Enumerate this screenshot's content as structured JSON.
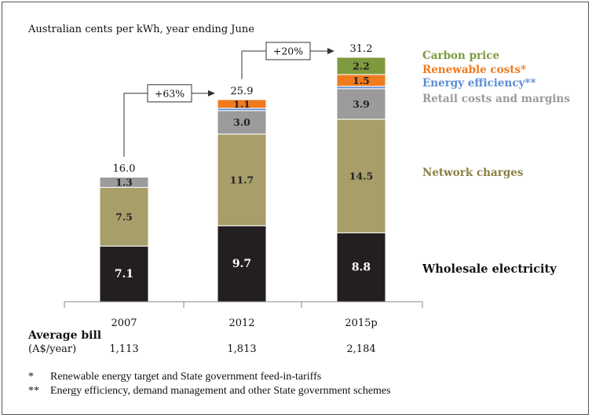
{
  "chart_data": {
    "type": "bar",
    "stacked": true,
    "subtitle": "Australian cents per kWh, year ending June",
    "categories": [
      "2007",
      "2012",
      "2015p"
    ],
    "totals": [
      "16.0",
      "25.9",
      "31.2"
    ],
    "series": [
      {
        "name": "Wholesale electricity",
        "color": "#231f20",
        "values": [
          7.1,
          9.7,
          8.8
        ],
        "labels": [
          "7.1",
          "9.7",
          "8.8"
        ]
      },
      {
        "name": "Network charges",
        "color": "#a89e6a",
        "values": [
          7.5,
          11.7,
          14.5
        ],
        "labels": [
          "7.5",
          "11.7",
          "14.5"
        ]
      },
      {
        "name": "Retail costs and margins",
        "color": "#9b9b9b",
        "values": [
          1.3,
          3.0,
          3.9
        ],
        "labels": [
          "1.3",
          "3.0",
          "3.9"
        ]
      },
      {
        "name": "Energy efficiency**",
        "color": "#5b8ed6",
        "values": [
          0,
          0.3,
          0.3
        ],
        "labels": [
          "",
          "",
          ""
        ]
      },
      {
        "name": "Renewable costs*",
        "color": "#f07a1e",
        "values": [
          0,
          1.1,
          1.5
        ],
        "labels": [
          "",
          "1.1",
          "1.5"
        ]
      },
      {
        "name": "Carbon price",
        "color": "#7e9a3e",
        "values": [
          0,
          0,
          2.2
        ],
        "labels": [
          "",
          "",
          "2.2"
        ]
      }
    ],
    "changes": [
      {
        "from": 0,
        "to": 1,
        "label": "+63%"
      },
      {
        "from": 1,
        "to": 2,
        "label": "+20%"
      }
    ],
    "ylim": [
      0,
      33
    ],
    "grid": false
  },
  "average_bill": {
    "label": "Average bill",
    "unit": "(A$/year)",
    "values": [
      "1,113",
      "1,813",
      "2,184"
    ]
  },
  "footnotes": [
    {
      "mark": "*",
      "text": "Renewable energy target and State government feed-in-tariffs"
    },
    {
      "mark": "**",
      "text": "Energy efficiency, demand management and other State government schemes"
    }
  ]
}
